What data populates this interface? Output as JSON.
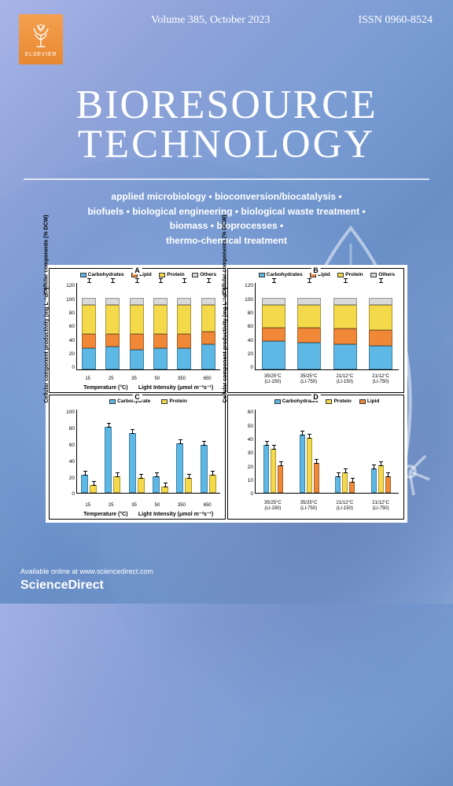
{
  "publisher": {
    "name": "ELSEVIER"
  },
  "header": {
    "volume": "Volume 385, October 2023",
    "issn": "ISSN 0960-8524"
  },
  "title": {
    "line1": "BIORESOURCE",
    "line2": "TECHNOLOGY"
  },
  "topics": {
    "row1": "applied microbiology • bioconversion/biocatalysis •",
    "row2": "biofuels • biological engineering • biological waste treatment •",
    "row3": "biomass • bioprocesses •",
    "row4": "thermo-chemical treatment"
  },
  "colors": {
    "carbohydrates": "#5eb8e6",
    "lipid": "#f08838",
    "protein": "#f4d94a",
    "others": "#d9d9d9",
    "text": "#ffffff"
  },
  "charts": {
    "ylabel_composition": "Cellular components (% DCW)",
    "ylabel_productivity": "Cellular component productivity (mg L⁻¹d⁻¹)",
    "legend4": [
      "Carbohydrates",
      "Lipid",
      "Protein",
      "Others"
    ],
    "legend3": [
      "Carbohydrates",
      "Protein",
      "Lipid"
    ],
    "y_ticks_comp": [
      "120",
      "100",
      "80",
      "60",
      "40",
      "20",
      "0"
    ],
    "y_ticks_prod_c": [
      "100",
      "80",
      "60",
      "40",
      "20",
      "0"
    ],
    "y_ticks_prod_d": [
      "60",
      "50",
      "40",
      "30",
      "20",
      "10",
      "0"
    ],
    "A": {
      "label": "A",
      "xlabel1": "Temperature (°C)",
      "xlabel2": "Light Intensity (μmol m⁻²s⁻¹)",
      "x_ticks": [
        "15",
        "25",
        "35",
        "50",
        "350",
        "650"
      ],
      "stacks": [
        {
          "carb": 30,
          "lipid": 20,
          "protein": 40,
          "others": 10
        },
        {
          "carb": 32,
          "lipid": 18,
          "protein": 40,
          "others": 10
        },
        {
          "carb": 28,
          "lipid": 22,
          "protein": 40,
          "others": 10
        },
        {
          "carb": 30,
          "lipid": 20,
          "protein": 40,
          "others": 10
        },
        {
          "carb": 30,
          "lipid": 20,
          "protein": 40,
          "others": 10
        },
        {
          "carb": 35,
          "lipid": 18,
          "protein": 37,
          "others": 10
        }
      ]
    },
    "B": {
      "label": "B",
      "x_ticks": [
        "35/25°C\n(LI-150)",
        "35/25°C\n(LI-750)",
        "21/12°C\n(LI-150)",
        "21/12°C\n(LI-750)"
      ],
      "stacks": [
        {
          "carb": 40,
          "lipid": 18,
          "protein": 32,
          "others": 10
        },
        {
          "carb": 38,
          "lipid": 20,
          "protein": 32,
          "others": 10
        },
        {
          "carb": 35,
          "lipid": 22,
          "protein": 33,
          "others": 10
        },
        {
          "carb": 33,
          "lipid": 22,
          "protein": 35,
          "others": 10
        }
      ]
    },
    "C": {
      "label": "C",
      "legend2": [
        "Carbohydrate",
        "Protein"
      ],
      "xlabel1": "Temperature (°C)",
      "xlabel2": "Light Intensity (μmol m⁻²s⁻¹)",
      "x_ticks": [
        "15",
        "25",
        "35",
        "50",
        "350",
        "650"
      ],
      "groups": [
        {
          "carb": 22,
          "protein": 10
        },
        {
          "carb": 80,
          "protein": 20
        },
        {
          "carb": 72,
          "protein": 18
        },
        {
          "carb": 20,
          "protein": 8
        },
        {
          "carb": 60,
          "protein": 18
        },
        {
          "carb": 58,
          "protein": 22
        }
      ]
    },
    "D": {
      "label": "D",
      "x_ticks": [
        "35/25°C\n(LI-150)",
        "35/25°C\n(LI-750)",
        "21/12°C\n(LI-150)",
        "21/12°C\n(LI-750)"
      ],
      "groups": [
        {
          "carb": 35,
          "protein": 32,
          "lipid": 20
        },
        {
          "carb": 42,
          "protein": 40,
          "lipid": 22
        },
        {
          "carb": 12,
          "protein": 15,
          "lipid": 8
        },
        {
          "carb": 18,
          "protein": 20,
          "lipid": 12
        }
      ]
    }
  },
  "footer": {
    "available": "Available online at www.sciencedirect.com",
    "brand": "ScienceDirect"
  }
}
